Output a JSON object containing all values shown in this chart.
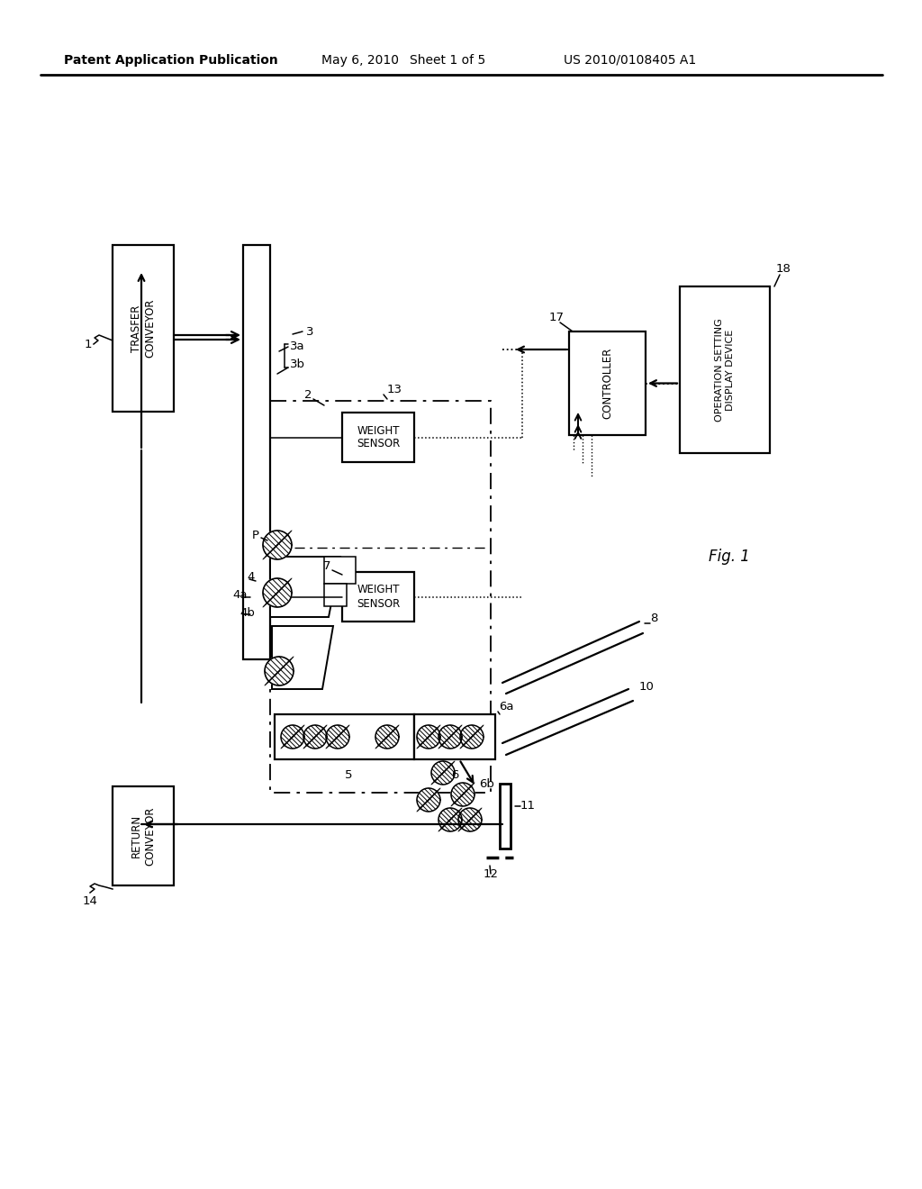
{
  "background_color": "#ffffff",
  "header_left": "Patent Application Publication",
  "header_mid1": "May 6, 2010",
  "header_mid2": "Sheet 1 of 5",
  "header_right": "US 2010/0108405 A1",
  "fig_label": "Fig. 1"
}
